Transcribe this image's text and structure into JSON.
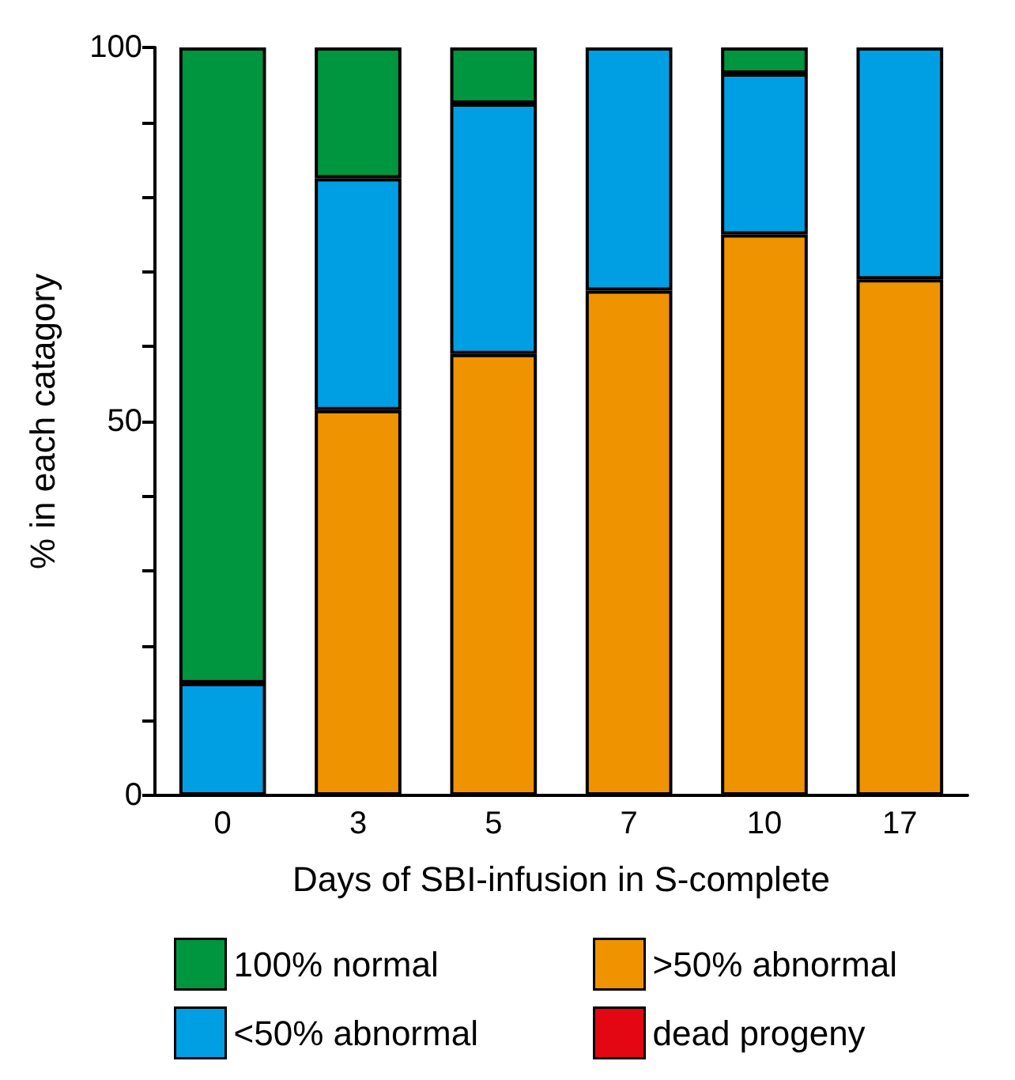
{
  "chart_data": {
    "type": "bar",
    "stacked": true,
    "xlabel": "Days of SBI-infusion in S-complete",
    "ylabel": "% in each catagory",
    "categories": [
      "0",
      "3",
      "5",
      "7",
      "10",
      "17"
    ],
    "series": [
      {
        "name": ">50% abnormal",
        "color": "#f09300",
        "values": [
          0,
          51.5,
          59,
          67.5,
          75,
          69
        ]
      },
      {
        "name": "<50% abnormal",
        "color": "#009fe3",
        "values": [
          15,
          31,
          33.5,
          32.5,
          21.5,
          31
        ]
      },
      {
        "name": "100% normal",
        "color": "#00953f",
        "values": [
          85,
          17.5,
          7.5,
          0,
          3.5,
          0
        ]
      },
      {
        "name": "dead progeny",
        "color": "#e30613",
        "values": [
          0,
          0,
          0,
          0,
          0,
          0
        ]
      }
    ],
    "ylim": [
      0,
      100
    ],
    "yticks": [
      0,
      {
        "value": 10,
        "label": null
      },
      {
        "value": 20,
        "label": null
      },
      {
        "value": 30,
        "label": null
      },
      {
        "value": 40,
        "label": null
      },
      50,
      {
        "value": 60,
        "label": null
      },
      {
        "value": 70,
        "label": null
      },
      {
        "value": 80,
        "label": null
      },
      {
        "value": 90,
        "label": null
      },
      100
    ],
    "grid": false,
    "legend": "bottom"
  }
}
